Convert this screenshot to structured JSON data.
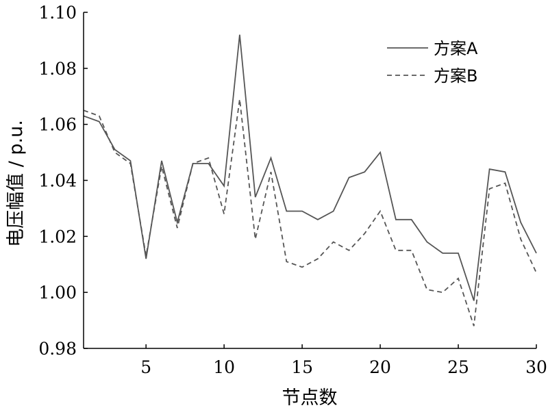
{
  "chart_data": {
    "type": "line",
    "xlabel": "节点数",
    "ylabel": "电压幅值 / p.u.",
    "xlim": [
      1,
      30
    ],
    "ylim": [
      0.98,
      1.1
    ],
    "xticks": [
      5,
      10,
      15,
      20,
      25,
      30
    ],
    "yticks": [
      0.98,
      1.0,
      1.02,
      1.04,
      1.06,
      1.08,
      1.1
    ],
    "ytick_labels": [
      "0.98",
      "1.00",
      "1.02",
      "1.04",
      "1.06",
      "1.08",
      "1.10"
    ],
    "legend_position": "top-right",
    "grid": false,
    "x": [
      1,
      2,
      3,
      4,
      5,
      6,
      7,
      8,
      9,
      10,
      11,
      12,
      13,
      14,
      15,
      16,
      17,
      18,
      19,
      20,
      21,
      22,
      23,
      24,
      25,
      26,
      27,
      28,
      29,
      30
    ],
    "series": [
      {
        "name": "方案A",
        "style": "solid",
        "color": "#555555",
        "values": [
          1.063,
          1.061,
          1.051,
          1.047,
          1.012,
          1.047,
          1.025,
          1.046,
          1.046,
          1.038,
          1.092,
          1.034,
          1.048,
          1.029,
          1.029,
          1.026,
          1.029,
          1.041,
          1.043,
          1.05,
          1.026,
          1.026,
          1.018,
          1.014,
          1.014,
          0.997,
          1.044,
          1.043,
          1.025,
          1.014
        ]
      },
      {
        "name": "方案B",
        "style": "dashed",
        "color": "#555555",
        "values": [
          1.065,
          1.063,
          1.05,
          1.046,
          1.013,
          1.045,
          1.023,
          1.046,
          1.048,
          1.028,
          1.069,
          1.019,
          1.043,
          1.011,
          1.009,
          1.012,
          1.018,
          1.015,
          1.021,
          1.029,
          1.015,
          1.015,
          1.001,
          1.0,
          1.005,
          0.988,
          1.037,
          1.039,
          1.019,
          1.007
        ]
      }
    ]
  }
}
